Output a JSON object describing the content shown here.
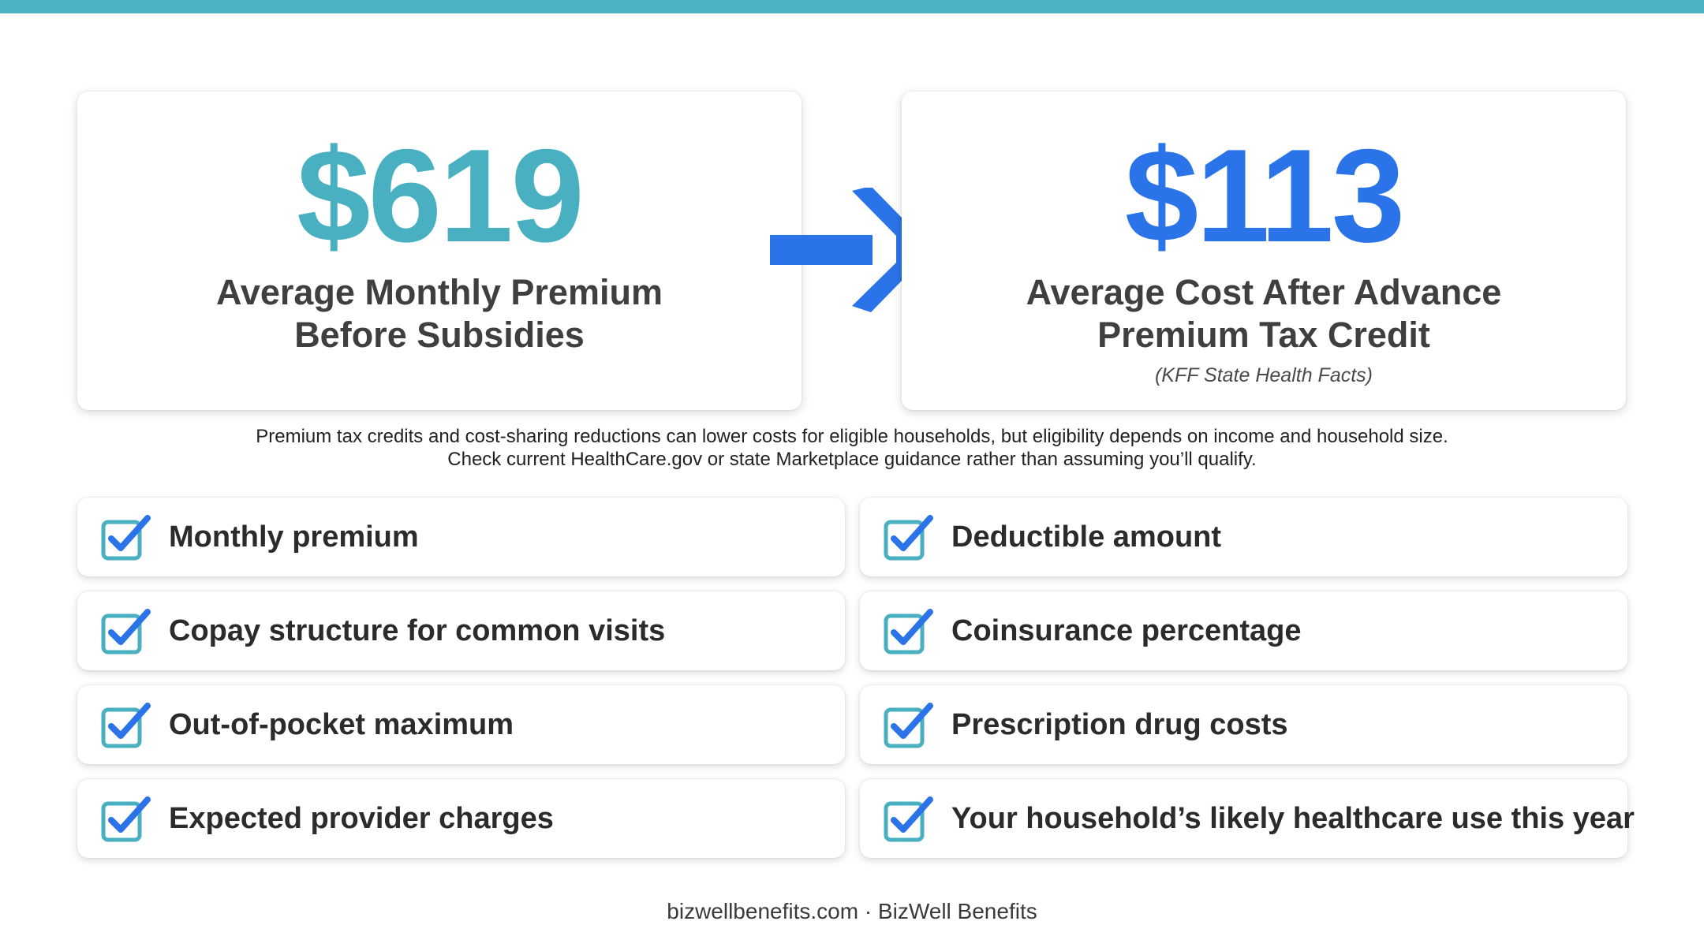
{
  "colors": {
    "top_bar": "#4bb3c3",
    "teal": "#48b0c0",
    "blue": "#2b73e8"
  },
  "before": {
    "value": "$619",
    "label_line1": "Average Monthly Premium",
    "label_line2": "Before Subsidies"
  },
  "after": {
    "value": "$113",
    "label_line1": "Average Cost After Advance",
    "label_line2": "Premium Tax Credit",
    "source": "(KFF State Health Facts)"
  },
  "arrow": {
    "icon": "arrow-right-icon"
  },
  "note": {
    "line1": "Premium tax credits and cost-sharing reductions can lower costs for eligible households, but eligibility depends on income and household size.",
    "line2": "Check current HealthCare.gov or state Marketplace guidance rather than assuming you’ll qualify."
  },
  "checklist": {
    "icon": "checkbox-checked-icon",
    "items": [
      {
        "label": "Monthly premium"
      },
      {
        "label": "Deductible amount"
      },
      {
        "label": "Copay structure for common visits"
      },
      {
        "label": "Coinsurance percentage"
      },
      {
        "label": "Out-of-pocket maximum"
      },
      {
        "label": "Prescription drug costs"
      },
      {
        "label": "Expected provider charges"
      },
      {
        "label": "Your household’s likely healthcare use this year"
      }
    ]
  },
  "footer": {
    "text": "bizwellbenefits.com · BizWell Benefits"
  }
}
